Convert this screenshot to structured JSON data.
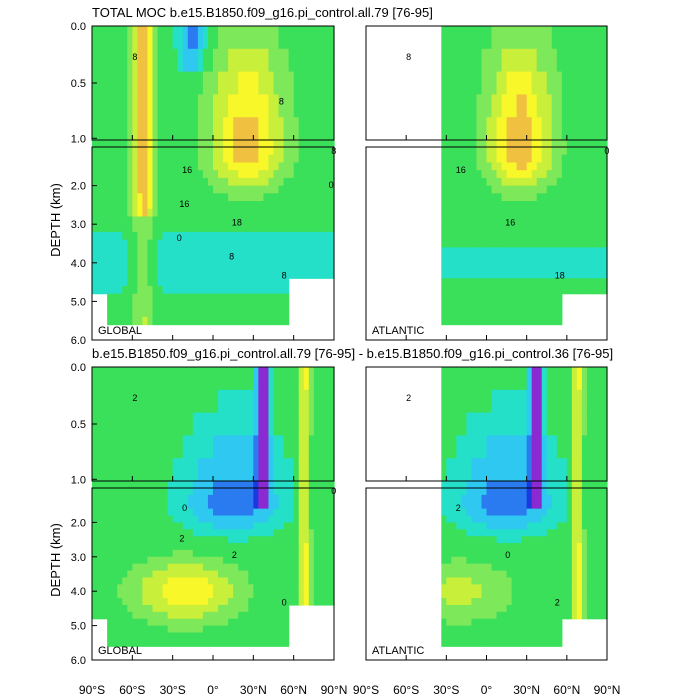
{
  "chart_data": {
    "type": "heatmap",
    "title_top": "TOTAL MOC b.e15.B1850.f09_g16.pi_control.all.79 [76-95]",
    "title_bottom": "b.e15.B1850.f09_g16.pi_control.all.79 [76-95] - b.e15.B1850.f09_g16.pi_control.36 [76-95]",
    "ylabel": "DEPTH (km)",
    "x_ticks": [
      "90°S",
      "60°S",
      "30°S",
      "0°",
      "30°N",
      "60°N",
      "90°N"
    ],
    "y_ticks_upper": [
      "0.0",
      "0.5",
      "1.0"
    ],
    "y_ticks_lower": [
      "2.0",
      "3.0",
      "4.0",
      "5.0",
      "6.0"
    ],
    "xlim": [
      -90,
      90
    ],
    "ylim_km": [
      0,
      6
    ],
    "upper_section_km": [
      0,
      1
    ],
    "lower_section_km": [
      1,
      6
    ],
    "regions": [
      "GLOBAL",
      "ATLANTIC"
    ],
    "contour_labels_total_global": [
      "8",
      "16",
      "18",
      "8",
      "8",
      "16",
      "8",
      "8",
      "0",
      "0"
    ],
    "contour_labels_total_atlantic": [
      "8",
      "16",
      "16",
      "18",
      "0"
    ],
    "contour_labels_diff_global": [
      "2",
      "0",
      "2",
      "0",
      "0",
      "2"
    ],
    "contour_labels_diff_atlantic": [
      "2",
      "2",
      "0",
      "2"
    ],
    "colors": {
      "background": "#ffffff",
      "zero_green": "#3ae05a",
      "pos_low": "#7de85a",
      "pos_mid": "#c8ef3a",
      "pos_high": "#f7f72a",
      "pos_peak": "#f0c040",
      "pos_max": "#f0a040",
      "neg_low": "#25e0c8",
      "neg_mid": "#2ec8f0",
      "neg_high": "#2a7af0",
      "neg_peak": "#1a3ae0",
      "neg_max": "#8a2ad0",
      "extreme": "#d020d0",
      "land": "#ffffff"
    }
  }
}
